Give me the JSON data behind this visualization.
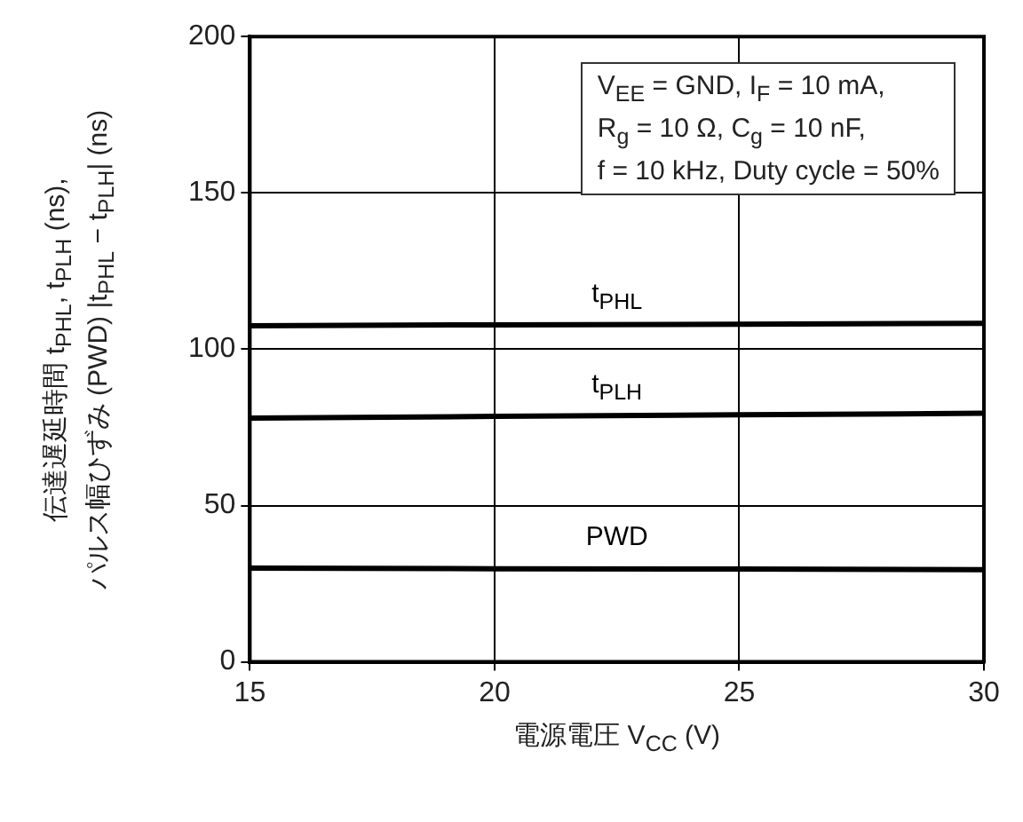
{
  "chart_data": {
    "type": "line",
    "xlabel": "電源電圧 V$_{CC}$ (V)",
    "ylabel": "伝達遅延時間 t$_{PHL}$, t$_{PLH}$ (ns),\nパルス幅ひずみ (PWD) |t$_{PHL}$ − t$_{PLH}$| (ns)",
    "annotations": [
      "V$_{EE}$ = GND, I$_{F}$ = 10 mA,\nR$_{g}$ = 10 Ω, C$_{g}$ = 10 nF,\nf = 10 kHz, Duty cycle = 50%"
    ],
    "x": [
      15,
      20,
      25,
      30
    ],
    "series": [
      {
        "name": "t$_{PHL}$",
        "color": "#000000",
        "values": [
          107.5,
          107.8,
          108,
          108.3
        ]
      },
      {
        "name": "t$_{PLH}$",
        "color": "#000000",
        "values": [
          78,
          78.5,
          79,
          79.5
        ]
      },
      {
        "name": "PWD",
        "color": "#000000",
        "values": [
          30,
          29.8,
          29.7,
          29.5
        ]
      }
    ],
    "xlim": [
      15,
      30
    ],
    "xticks": [
      15,
      20,
      25,
      30
    ],
    "ylim": [
      0,
      200
    ],
    "yticks": [
      0,
      50,
      100,
      150,
      200
    ],
    "grid": true,
    "marker": "none",
    "line_style": "solid"
  }
}
